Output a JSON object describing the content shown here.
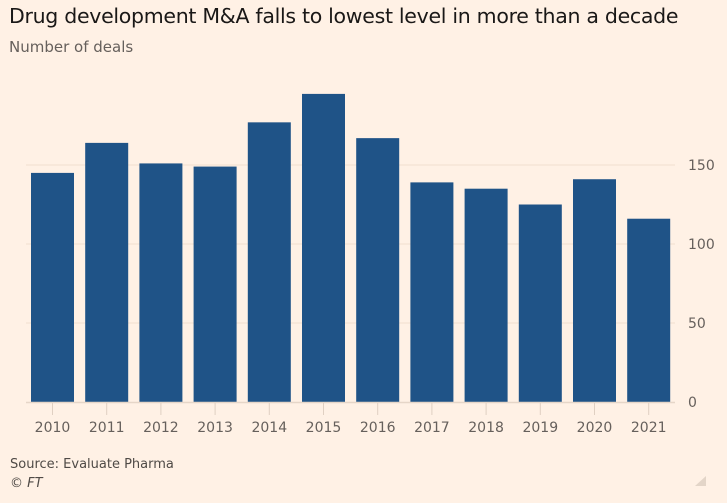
{
  "colors": {
    "background": "#fff1e5",
    "bar": "#1f5387",
    "gridline": "#f2dfce",
    "text": "#66605c"
  },
  "chart_data": {
    "type": "bar",
    "title": "Drug development M&A falls to lowest level in more than a decade",
    "subtitle": "Number of deals",
    "xlabel": "",
    "ylabel": "Number of deals",
    "categories": [
      "2010",
      "2011",
      "2012",
      "2013",
      "2014",
      "2015",
      "2016",
      "2017",
      "2018",
      "2019",
      "2020",
      "2021"
    ],
    "values": [
      145,
      164,
      151,
      149,
      177,
      195,
      167,
      139,
      135,
      125,
      141,
      116
    ],
    "ylim": [
      0,
      200
    ],
    "yticks": [
      0,
      50,
      100,
      150
    ],
    "y_axis_side": "right",
    "grid": true,
    "legend": "none"
  },
  "footer": {
    "source": "Source: Evaluate Pharma",
    "copyright": "© FT"
  },
  "icons": {
    "resize": "resize-handle-icon"
  }
}
